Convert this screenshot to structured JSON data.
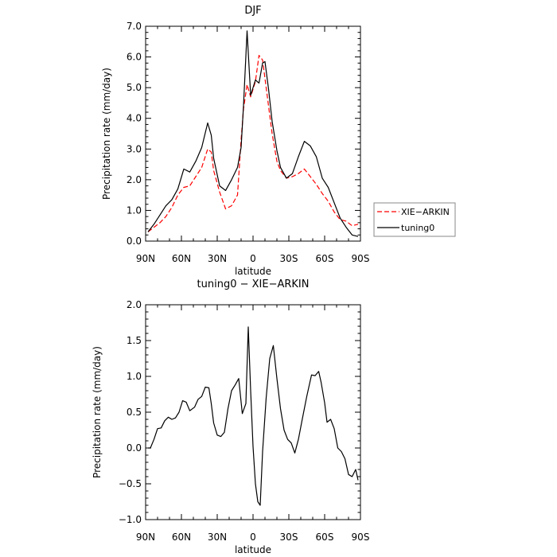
{
  "chart_data": [
    {
      "type": "line",
      "title": "DJF",
      "xlabel": "latitude",
      "ylabel": "Precipitation rate (mm/day)",
      "xlim": [
        -90,
        90
      ],
      "ylim": [
        0,
        7
      ],
      "xticks": [
        -90,
        -60,
        -30,
        0,
        30,
        60,
        90
      ],
      "xtick_labels": [
        "90N",
        "60N",
        "30N",
        "0",
        "30S",
        "60S",
        "90S"
      ],
      "yticks": [
        0,
        1,
        2,
        3,
        4,
        5,
        6,
        7
      ],
      "ytick_labels": [
        "0.0",
        "1.0",
        "2.0",
        "3.0",
        "4.0",
        "5.0",
        "6.0",
        "7.0"
      ],
      "grid": false,
      "legend": "right",
      "series": [
        {
          "name": "XIE−ARKIN",
          "color": "#ff0000",
          "style": "dashed",
          "x": [
            -88,
            -83,
            -78,
            -73,
            -68,
            -63,
            -58,
            -53,
            -48,
            -43,
            -38,
            -35,
            -33,
            -28,
            -23,
            -18,
            -13,
            -10,
            -8,
            -5,
            -2,
            2,
            5,
            8,
            10,
            13,
            16,
            20,
            23,
            28,
            33,
            38,
            43,
            48,
            53,
            58,
            63,
            68,
            73,
            78,
            83,
            88
          ],
          "y": [
            0.3,
            0.45,
            0.6,
            0.8,
            1.1,
            1.5,
            1.75,
            1.8,
            2.1,
            2.4,
            3.0,
            2.9,
            2.3,
            1.6,
            1.05,
            1.15,
            1.5,
            3.3,
            4.3,
            5.1,
            4.7,
            5.2,
            6.05,
            5.9,
            5.3,
            4.4,
            3.5,
            2.6,
            2.3,
            2.05,
            2.1,
            2.2,
            2.35,
            2.1,
            1.85,
            1.55,
            1.3,
            0.95,
            0.7,
            0.65,
            0.5,
            0.55
          ]
        },
        {
          "name": "tuning0",
          "color": "#000000",
          "style": "solid",
          "x": [
            -88,
            -83,
            -78,
            -73,
            -68,
            -63,
            -58,
            -53,
            -48,
            -43,
            -38,
            -35,
            -33,
            -28,
            -23,
            -18,
            -13,
            -10,
            -8,
            -5,
            -2,
            2,
            5,
            8,
            10,
            13,
            16,
            20,
            23,
            28,
            33,
            38,
            43,
            48,
            53,
            58,
            63,
            68,
            73,
            78,
            83,
            88
          ],
          "y": [
            0.3,
            0.55,
            0.85,
            1.15,
            1.35,
            1.7,
            2.35,
            2.25,
            2.6,
            3.05,
            3.85,
            3.45,
            2.7,
            1.8,
            1.65,
            2.0,
            2.4,
            3.05,
            4.4,
            6.85,
            4.75,
            5.25,
            5.15,
            5.8,
            5.85,
            4.95,
            3.9,
            2.95,
            2.4,
            2.05,
            2.2,
            2.75,
            3.25,
            3.1,
            2.75,
            2.05,
            1.75,
            1.25,
            0.75,
            0.45,
            0.2,
            0.15
          ]
        }
      ]
    },
    {
      "type": "line",
      "title": "tuning0 − XIE−ARKIN",
      "xlabel": "latitude",
      "ylabel": "Precipitation rate (mm/day)",
      "xlim": [
        -90,
        90
      ],
      "ylim": [
        -1,
        2
      ],
      "xticks": [
        -90,
        -60,
        -30,
        0,
        30,
        60,
        90
      ],
      "xtick_labels": [
        "90N",
        "60N",
        "30N",
        "0",
        "30S",
        "60S",
        "90S"
      ],
      "yticks": [
        -1,
        -0.5,
        0,
        0.5,
        1,
        1.5,
        2
      ],
      "ytick_labels": [
        "−1.0",
        "−0.5",
        "0.0",
        "0.5",
        "1.0",
        "1.5",
        "2.0"
      ],
      "grid": false,
      "series": [
        {
          "color": "#000000",
          "style": "solid",
          "x": [
            -88,
            -86,
            -83,
            -80,
            -77,
            -74,
            -71,
            -68,
            -65,
            -62,
            -59,
            -56,
            -53,
            -49,
            -46,
            -43,
            -40,
            -37,
            -35,
            -33,
            -30,
            -27,
            -24,
            -21,
            -18,
            -15,
            -12,
            -9,
            -6,
            -4,
            -2,
            0,
            2,
            4,
            6,
            8,
            11,
            14,
            17,
            20,
            23,
            26,
            29,
            32,
            35,
            38,
            41,
            45,
            49,
            52,
            55,
            57,
            60,
            62,
            65,
            68,
            71,
            74,
            77,
            80,
            83,
            86,
            88
          ],
          "y": [
            0.0,
            0.0,
            0.12,
            0.27,
            0.28,
            0.38,
            0.43,
            0.4,
            0.42,
            0.5,
            0.66,
            0.64,
            0.52,
            0.57,
            0.68,
            0.72,
            0.85,
            0.84,
            0.62,
            0.35,
            0.18,
            0.16,
            0.22,
            0.55,
            0.8,
            0.88,
            0.97,
            0.48,
            0.62,
            1.69,
            0.8,
            0.02,
            -0.5,
            -0.75,
            -0.8,
            -0.05,
            0.7,
            1.25,
            1.43,
            0.97,
            0.55,
            0.25,
            0.12,
            0.07,
            -0.07,
            0.12,
            0.38,
            0.72,
            1.02,
            1.01,
            1.07,
            0.92,
            0.63,
            0.36,
            0.4,
            0.27,
            0.0,
            -0.05,
            -0.15,
            -0.37,
            -0.4,
            -0.3,
            -0.45
          ]
        }
      ]
    }
  ],
  "legend": {
    "items": [
      {
        "label": "XIE−ARKIN",
        "color": "#ff0000",
        "style": "dashed"
      },
      {
        "label": "tuning0",
        "color": "#000000",
        "style": "solid"
      }
    ]
  }
}
